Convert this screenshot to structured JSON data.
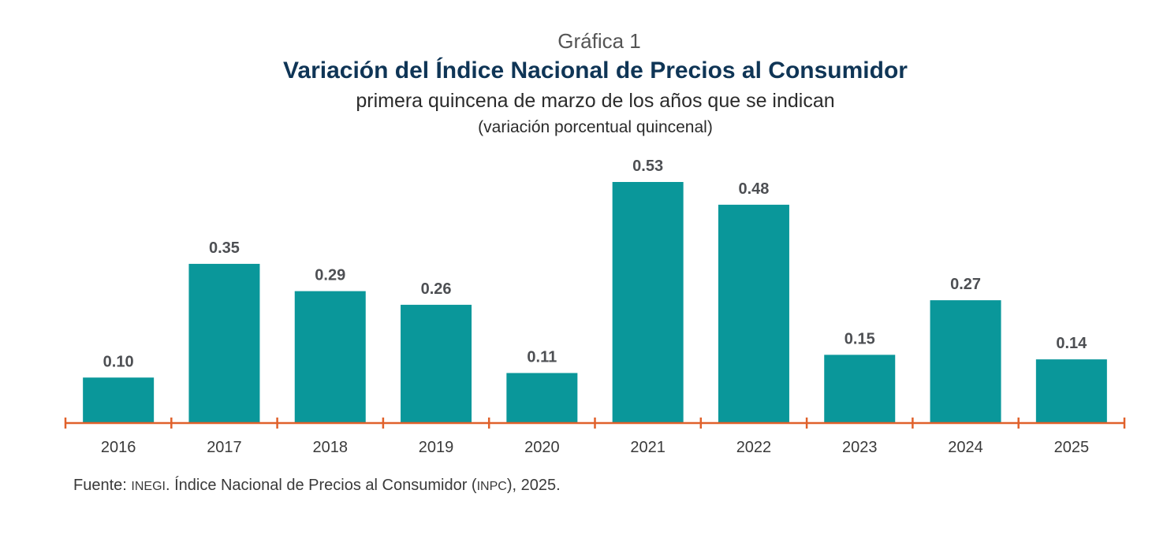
{
  "header": {
    "kicker": "Gráfica 1",
    "title": "Variación del Índice Nacional de Precios al Consumidor",
    "subtitle": "primera quincena de marzo de los años que se indican",
    "unit": "(variación porcentual quincenal)"
  },
  "footer": {
    "source_prefix": "Fuente: ",
    "source_org": "INEGI",
    "source_middle": ". Índice Nacional de Precios al Consumidor ",
    "source_abbrev": "INPC",
    "source_end": "), 2025."
  },
  "colors": {
    "bar": "#0a979a",
    "axis": "#e0612b",
    "title": "#0f3556",
    "label": "#4d4f53",
    "text": "#3a3a3a"
  },
  "chart_data": {
    "type": "bar",
    "title": "Variación del Índice Nacional de Precios al Consumidor",
    "xlabel": "",
    "ylabel": "",
    "categories": [
      "2016",
      "2017",
      "2018",
      "2019",
      "2020",
      "2021",
      "2022",
      "2023",
      "2024",
      "2025"
    ],
    "values": [
      0.1,
      0.35,
      0.29,
      0.26,
      0.11,
      0.53,
      0.48,
      0.15,
      0.27,
      0.14
    ],
    "value_labels": [
      "0.10",
      "0.35",
      "0.29",
      "0.26",
      "0.11",
      "0.53",
      "0.48",
      "0.15",
      "0.27",
      "0.14"
    ],
    "ylim": [
      0,
      0.53
    ],
    "grid": false,
    "legend": "none"
  }
}
